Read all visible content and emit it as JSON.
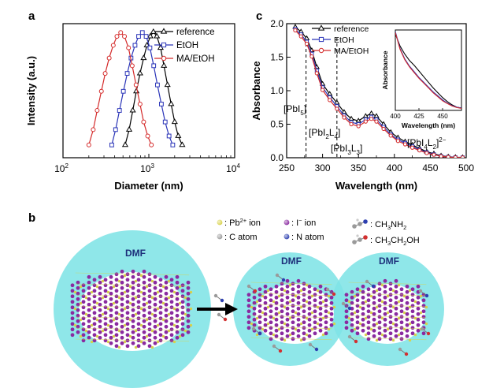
{
  "panels": {
    "a": "a",
    "b": "b",
    "c": "c"
  },
  "chart_data": [
    {
      "type": "line",
      "panel": "a",
      "xlabel": "Diameter (nm)",
      "ylabel": "Intensity (a.u.)",
      "xscale": "log",
      "xlim": [
        100,
        10000
      ],
      "x_ticks": [
        {
          "value": 100,
          "base": "10",
          "exp": "2"
        },
        {
          "value": 1000,
          "base": "10",
          "exp": "3"
        },
        {
          "value": 10000,
          "base": "10",
          "exp": "4"
        }
      ],
      "y_ticks": "none",
      "legend_position": "top-right",
      "series": [
        {
          "name": "reference",
          "marker": "triangle",
          "color": "#000000",
          "x": [
            530,
            590,
            650,
            715,
            790,
            870,
            950,
            1040,
            1130,
            1240,
            1370,
            1500,
            1650,
            1820,
            2000,
            2200,
            2450
          ],
          "y": [
            0.1,
            0.22,
            0.37,
            0.52,
            0.66,
            0.78,
            0.88,
            0.95,
            0.985,
            0.95,
            0.86,
            0.72,
            0.57,
            0.42,
            0.28,
            0.17,
            0.1
          ]
        },
        {
          "name": "EtOH",
          "marker": "square",
          "color": "#2b35b8",
          "x": [
            370,
            410,
            455,
            505,
            560,
            620,
            690,
            760,
            840,
            930,
            1030,
            1140,
            1260,
            1400,
            1550,
            1720,
            1900
          ],
          "y": [
            0.1,
            0.22,
            0.37,
            0.52,
            0.66,
            0.78,
            0.88,
            0.95,
            0.98,
            0.95,
            0.86,
            0.72,
            0.57,
            0.42,
            0.28,
            0.17,
            0.1
          ]
        },
        {
          "name": "MA/EtOH",
          "marker": "circle",
          "color": "#d42a2a",
          "x": [
            200,
            225,
            250,
            280,
            310,
            345,
            385,
            425,
            470,
            520,
            580,
            640,
            710,
            790,
            870,
            970,
            1070
          ],
          "y": [
            0.1,
            0.22,
            0.37,
            0.52,
            0.66,
            0.78,
            0.88,
            0.95,
            0.98,
            0.95,
            0.86,
            0.72,
            0.57,
            0.42,
            0.28,
            0.17,
            0.1
          ]
        }
      ]
    },
    {
      "type": "line",
      "panel": "c",
      "xlabel": "Wavelength (nm)",
      "ylabel": "Absorbance",
      "xlim": [
        250,
        500
      ],
      "ylim": [
        0,
        2.0
      ],
      "x_ticks": [
        250,
        300,
        350,
        400,
        450,
        500
      ],
      "y_ticks": [
        "0.0",
        "0.5",
        "1.0",
        "1.5",
        "2.0"
      ],
      "legend_position": "top-left",
      "reference_lines": [
        277,
        320
      ],
      "annotations": [
        {
          "text": "[PbI",
          "sub": "5",
          "tail": "]",
          "sup": "",
          "x": 278,
          "y": 1.15
        },
        {
          "text": "[PbI",
          "sub": "2",
          "tail": "L",
          "sub2": "4",
          "end": "]",
          "x": 300,
          "y": 0.72
        },
        {
          "text": "[PbI",
          "sub": "3",
          "tail": "L",
          "sub2": "3",
          "end": "]",
          "x": 360,
          "y": 0.35
        },
        {
          "text": "[PbI",
          "sub": "4",
          "tail": "L",
          "sub2": "2",
          "end": "]",
          "sup": "2−",
          "x": 425,
          "y": 0.4
        }
      ],
      "series": [
        {
          "name": "reference",
          "marker": "triangle",
          "color": "#000000",
          "x": [
            262,
            270,
            278,
            285,
            292,
            300,
            310,
            320,
            330,
            340,
            350,
            360,
            368,
            375,
            385,
            395,
            405,
            415,
            425,
            435,
            445,
            455,
            465,
            475,
            485,
            495
          ],
          "y": [
            1.95,
            1.88,
            1.78,
            1.6,
            1.35,
            1.1,
            0.95,
            0.82,
            0.68,
            0.58,
            0.55,
            0.62,
            0.66,
            0.62,
            0.5,
            0.38,
            0.3,
            0.24,
            0.19,
            0.14,
            0.09,
            0.06,
            0.03,
            0.015,
            0.008,
            0.005
          ]
        },
        {
          "name": "EtOH",
          "marker": "square",
          "color": "#2b35b8",
          "x": [
            262,
            270,
            278,
            285,
            292,
            300,
            310,
            320,
            330,
            340,
            350,
            360,
            368,
            375,
            385,
            395,
            405,
            415,
            425,
            435,
            445,
            455,
            465,
            475,
            485,
            495
          ],
          "y": [
            1.92,
            1.84,
            1.73,
            1.55,
            1.3,
            1.05,
            0.9,
            0.77,
            0.63,
            0.53,
            0.5,
            0.57,
            0.61,
            0.57,
            0.46,
            0.35,
            0.27,
            0.22,
            0.17,
            0.12,
            0.08,
            0.05,
            0.025,
            0.012,
            0.006,
            0.004
          ]
        },
        {
          "name": "MA/EtOH",
          "marker": "circle",
          "color": "#d42a2a",
          "x": [
            262,
            270,
            278,
            285,
            292,
            300,
            310,
            320,
            330,
            340,
            350,
            360,
            368,
            375,
            385,
            395,
            405,
            415,
            425,
            435,
            445,
            455,
            465,
            475,
            485,
            495
          ],
          "y": [
            1.9,
            1.81,
            1.7,
            1.51,
            1.26,
            1.01,
            0.86,
            0.73,
            0.6,
            0.5,
            0.47,
            0.54,
            0.58,
            0.54,
            0.43,
            0.33,
            0.25,
            0.2,
            0.15,
            0.11,
            0.07,
            0.045,
            0.022,
            0.01,
            0.005,
            0.003
          ]
        }
      ],
      "inset": {
        "xlabel": "Wavelength (nm)",
        "ylabel": "Absorbance",
        "xlim": [
          400,
          470
        ],
        "x_ticks": [
          400,
          425,
          450
        ],
        "series": [
          {
            "name": "reference",
            "color": "#000000",
            "x": [
              400,
              405,
              410,
              415,
              420,
              425,
              430,
              435,
              440,
              445,
              450,
              455,
              460,
              465,
              470
            ],
            "y": [
              0.95,
              0.8,
              0.7,
              0.62,
              0.56,
              0.49,
              0.42,
              0.35,
              0.28,
              0.22,
              0.16,
              0.11,
              0.07,
              0.04,
              0.03
            ]
          },
          {
            "name": "EtOH",
            "color": "#2b35b8",
            "x": [
              400,
              405,
              410,
              415,
              420,
              425,
              430,
              435,
              440,
              445,
              450,
              455,
              460,
              465,
              470
            ],
            "y": [
              0.98,
              0.77,
              0.64,
              0.55,
              0.48,
              0.41,
              0.35,
              0.29,
              0.23,
              0.18,
              0.13,
              0.09,
              0.06,
              0.04,
              0.03
            ]
          },
          {
            "name": "MA/EtOH",
            "color": "#d42a2a",
            "x": [
              400,
              405,
              410,
              415,
              420,
              425,
              430,
              435,
              440,
              445,
              450,
              455,
              460,
              465,
              470
            ],
            "y": [
              0.97,
              0.76,
              0.63,
              0.54,
              0.47,
              0.4,
              0.34,
              0.28,
              0.22,
              0.17,
              0.12,
              0.085,
              0.055,
              0.035,
              0.025
            ]
          }
        ]
      }
    }
  ],
  "schematic": {
    "legend": {
      "pb": {
        "text": ": Pb",
        "sup": "2+",
        "tail": " ion"
      },
      "i": {
        "text": ": I",
        "sup": "−",
        "tail": " ion"
      },
      "c": {
        "text": ": C atom"
      },
      "n": {
        "text": ": N atom"
      },
      "ma": {
        "text": ": CH",
        "sub": "3",
        "tail": "NH",
        "sub2": "2"
      },
      "etoh": {
        "text": ": CH",
        "sub": "3",
        "tail": "CH",
        "sub2": "2",
        "end": "OH"
      }
    },
    "solvent_label": "DMF",
    "colors": {
      "solvent": "#7fe4e6",
      "iodide": "#8a2aa0",
      "lead": "#d8d24a",
      "carbon": "#9a9a9a",
      "nitrogen": "#2d3fb0",
      "oxygen": "#d23030",
      "arrow": "#000000"
    }
  }
}
